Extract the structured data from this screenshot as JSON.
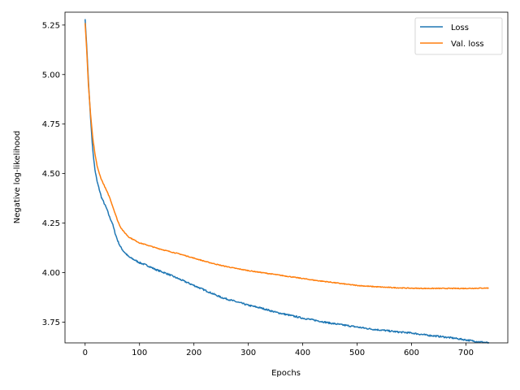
{
  "chart_data": {
    "type": "line",
    "title": "",
    "xlabel": "Epochs",
    "ylabel": "Negative log-likelihood",
    "xlim": [
      -37,
      777
    ],
    "ylim": [
      3.645,
      5.315
    ],
    "xticks": [
      0,
      100,
      200,
      300,
      400,
      500,
      600,
      700
    ],
    "yticks": [
      3.75,
      4.0,
      4.25,
      4.5,
      4.75,
      5.0,
      5.25
    ],
    "ytick_labels": [
      "3.75",
      "4.00",
      "4.25",
      "4.50",
      "4.75",
      "5.00",
      "5.25"
    ],
    "grid": false,
    "legend": "top-right",
    "series": [
      {
        "name": "Loss",
        "color": "#1f77b4",
        "noise": 0.004,
        "x": [
          0,
          3,
          6,
          10,
          14,
          18,
          22,
          26,
          30,
          35,
          40,
          45,
          50,
          55,
          60,
          65,
          70,
          75,
          80,
          90,
          100,
          115,
          130,
          150,
          175,
          200,
          225,
          250,
          275,
          300,
          325,
          350,
          375,
          400,
          425,
          450,
          475,
          500,
          525,
          550,
          575,
          600,
          625,
          650,
          675,
          700,
          720,
          742
        ],
        "y": [
          5.28,
          5.14,
          4.97,
          4.78,
          4.62,
          4.52,
          4.46,
          4.42,
          4.38,
          4.35,
          4.32,
          4.28,
          4.25,
          4.2,
          4.16,
          4.13,
          4.11,
          4.095,
          4.08,
          4.065,
          4.05,
          4.035,
          4.015,
          3.995,
          3.965,
          3.935,
          3.905,
          3.875,
          3.855,
          3.835,
          3.82,
          3.8,
          3.785,
          3.77,
          3.758,
          3.745,
          3.735,
          3.725,
          3.715,
          3.708,
          3.7,
          3.695,
          3.685,
          3.678,
          3.67,
          3.66,
          3.652,
          3.645
        ]
      },
      {
        "name": "Val. loss",
        "color": "#ff7f0e",
        "noise": 0.002,
        "x": [
          0,
          3,
          6,
          10,
          14,
          18,
          22,
          26,
          30,
          35,
          40,
          45,
          50,
          55,
          60,
          65,
          70,
          75,
          80,
          90,
          100,
          115,
          130,
          150,
          175,
          200,
          225,
          250,
          275,
          300,
          325,
          350,
          375,
          400,
          425,
          450,
          475,
          500,
          525,
          550,
          575,
          600,
          625,
          650,
          675,
          700,
          720,
          742
        ],
        "y": [
          5.26,
          5.12,
          4.95,
          4.8,
          4.68,
          4.6,
          4.54,
          4.5,
          4.47,
          4.44,
          4.41,
          4.38,
          4.34,
          4.3,
          4.26,
          4.23,
          4.21,
          4.195,
          4.18,
          4.165,
          4.15,
          4.138,
          4.125,
          4.11,
          4.093,
          4.073,
          4.053,
          4.036,
          4.022,
          4.01,
          4.0,
          3.99,
          3.98,
          3.97,
          3.96,
          3.952,
          3.943,
          3.935,
          3.93,
          3.926,
          3.923,
          3.921,
          3.92,
          3.92,
          3.92,
          3.92,
          3.921,
          3.922
        ]
      }
    ]
  }
}
